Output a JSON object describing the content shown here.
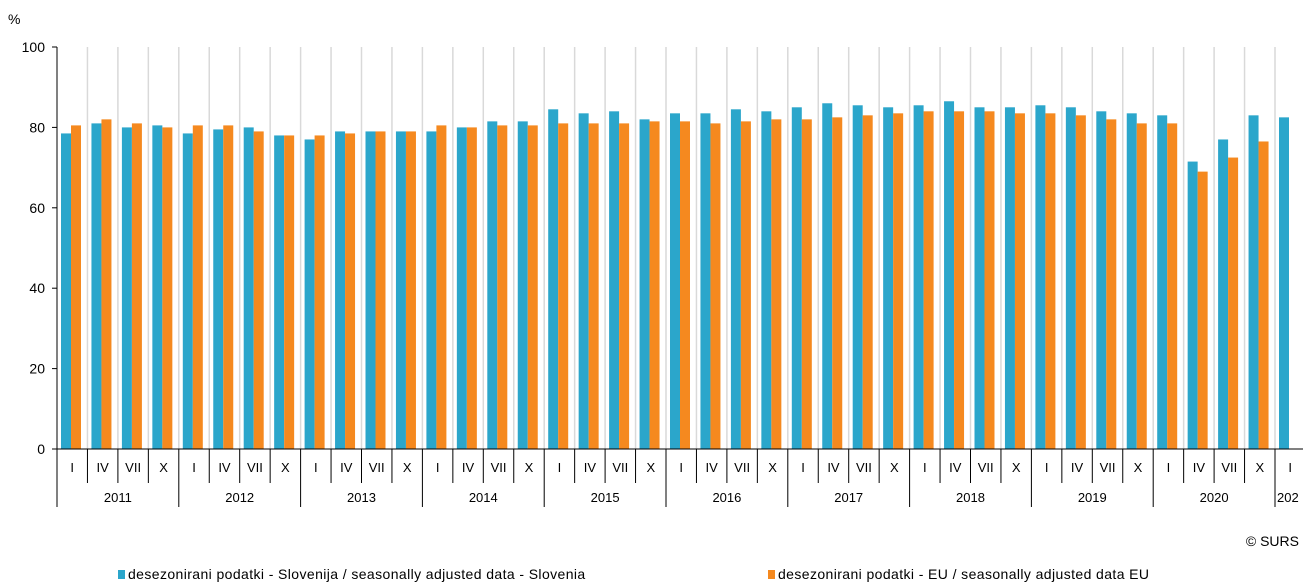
{
  "credit": "© SURS",
  "colors": {
    "slovenia": "#2ba6cb",
    "eu": "#f5891f",
    "grid": "#d9d9d9"
  },
  "chart_data": {
    "type": "bar",
    "ylabel": "%",
    "ylim": [
      0,
      100
    ],
    "yticks": [
      0,
      20,
      40,
      60,
      80,
      100
    ],
    "grid": "vertical lines between quarters",
    "legend_position": "bottom",
    "categories": [
      "I",
      "IV",
      "VII",
      "X",
      "I",
      "IV",
      "VII",
      "X",
      "I",
      "IV",
      "VII",
      "X",
      "I",
      "IV",
      "VII",
      "X",
      "I",
      "IV",
      "VII",
      "X",
      "I",
      "IV",
      "VII",
      "X",
      "I",
      "IV",
      "VII",
      "X",
      "I",
      "IV",
      "VII",
      "X",
      "I",
      "IV",
      "VII",
      "X",
      "I",
      "IV",
      "VII",
      "X",
      "I"
    ],
    "years": [
      {
        "label": "2011",
        "quarters": 4
      },
      {
        "label": "2012",
        "quarters": 4
      },
      {
        "label": "2013",
        "quarters": 4
      },
      {
        "label": "2014",
        "quarters": 4
      },
      {
        "label": "2015",
        "quarters": 4
      },
      {
        "label": "2016",
        "quarters": 4
      },
      {
        "label": "2017",
        "quarters": 4
      },
      {
        "label": "2018",
        "quarters": 4
      },
      {
        "label": "2019",
        "quarters": 4
      },
      {
        "label": "2020",
        "quarters": 4
      },
      {
        "label": "202",
        "quarters": 1
      }
    ],
    "series": [
      {
        "name": "desezonirani podatki - Slovenija / seasonally adjusted data - Slovenia",
        "color": "#2ba6cb",
        "values": [
          78.5,
          81,
          80,
          80.5,
          78.5,
          79.5,
          80,
          78,
          77,
          79,
          79,
          79,
          79,
          80,
          81.5,
          81.5,
          84.5,
          83.5,
          84,
          82,
          83.5,
          83.5,
          84.5,
          84,
          85,
          86,
          85.5,
          85,
          85.5,
          86.5,
          85,
          85,
          85.5,
          85,
          84,
          83.5,
          83,
          71.5,
          77,
          83,
          82.5
        ]
      },
      {
        "name": "desezonirani podatki - EU / seasonally adjusted data EU",
        "color": "#f5891f",
        "values": [
          80.5,
          82,
          81,
          80,
          80.5,
          80.5,
          79,
          78,
          78,
          78.5,
          79,
          79,
          80.5,
          80,
          80.5,
          80.5,
          81,
          81,
          81,
          81.5,
          81.5,
          81,
          81.5,
          82,
          82,
          82.5,
          83,
          83.5,
          84,
          84,
          84,
          83.5,
          83.5,
          83,
          82,
          81,
          81,
          69,
          72.5,
          76.5,
          null
        ]
      }
    ]
  }
}
